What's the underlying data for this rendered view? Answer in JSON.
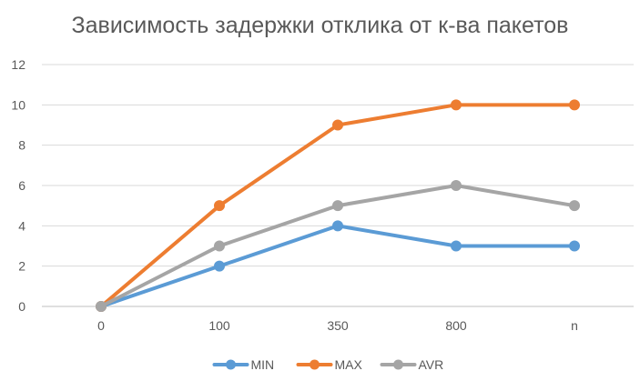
{
  "chart_data": {
    "type": "line",
    "title": "Зависимость задержки отклика от к-ва пакетов",
    "xlabel": "",
    "ylabel": "",
    "categories": [
      "0",
      "100",
      "350",
      "800",
      "n"
    ],
    "ylim": [
      0,
      12
    ],
    "yticks": [
      0,
      2,
      4,
      6,
      8,
      10,
      12
    ],
    "grid": true,
    "legend_position": "bottom",
    "series": [
      {
        "name": "MIN",
        "color": "#5B9BD5",
        "values": [
          0,
          2,
          4,
          3,
          3
        ]
      },
      {
        "name": "MAX",
        "color": "#ED7D31",
        "values": [
          0,
          5,
          9,
          10,
          10
        ]
      },
      {
        "name": "AVR",
        "color": "#A5A5A5",
        "values": [
          0,
          3,
          5,
          6,
          5
        ]
      }
    ]
  }
}
